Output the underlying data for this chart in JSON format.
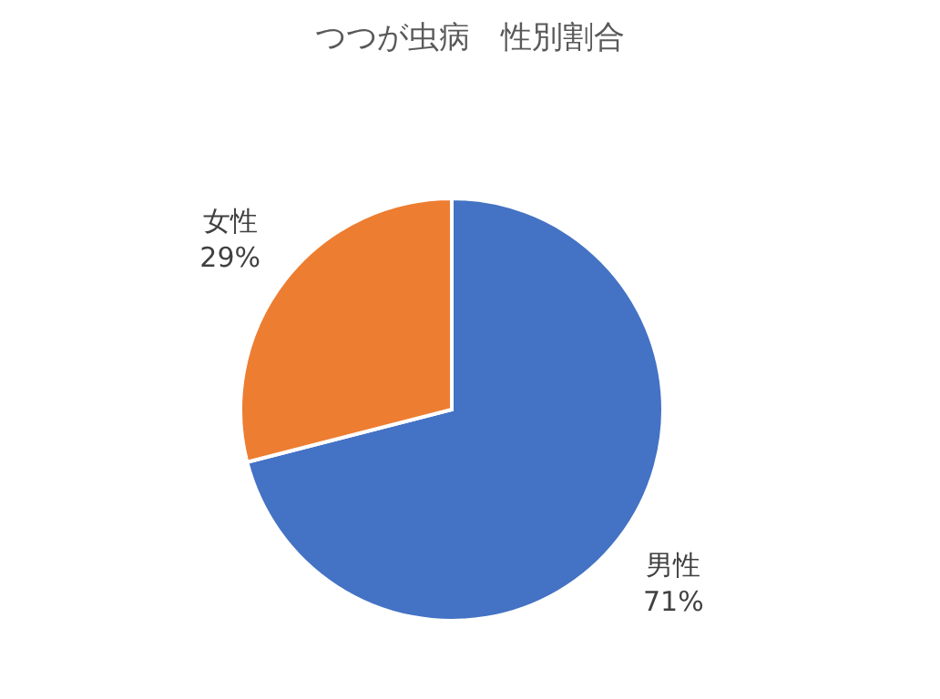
{
  "chart_data": {
    "type": "pie",
    "title": "つつが虫病　性別割合",
    "categories": [
      "男性",
      "女性"
    ],
    "values": [
      71,
      29
    ],
    "colors": [
      "#4472c4",
      "#ed7d31"
    ],
    "value_labels": [
      "71%",
      "29%"
    ],
    "legend": false
  }
}
